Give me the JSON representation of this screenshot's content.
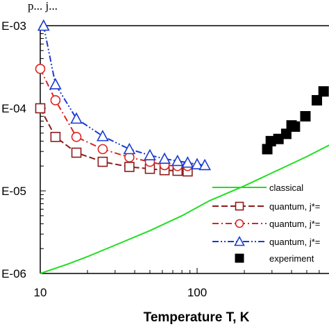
{
  "page_top_text": "p... j...",
  "chart_data": {
    "type": "line",
    "xlabel": "Temperature T, K",
    "ylabel": "",
    "xscale": "log",
    "yscale": "log",
    "xlim": [
      10,
      1000
    ],
    "ylim": [
      1e-06,
      0.001
    ],
    "x_tick_labels": [
      {
        "value": 10,
        "label": "10"
      },
      {
        "value": 100,
        "label": "100"
      }
    ],
    "y_tick_labels": [
      {
        "value": 0.001,
        "label": "E-03"
      },
      {
        "value": 0.0001,
        "label": "E-04"
      },
      {
        "value": 1e-05,
        "label": "E-05"
      },
      {
        "value": 1e-06,
        "label": "E-06"
      }
    ],
    "grid": false,
    "legend_placement": "bottom-right",
    "series": [
      {
        "name": "classical",
        "color": "#22dd22",
        "marker": "none",
        "dash": "solid",
        "x": [
          10,
          15,
          20,
          30,
          50,
          80,
          120,
          200,
          300,
          500,
          700,
          1000
        ],
        "y": [
          1e-06,
          1.3e-06,
          1.6e-06,
          2.2e-06,
          3.3e-06,
          5e-06,
          7.6e-06,
          1.15e-05,
          1.65e-05,
          2.6e-05,
          3.6e-05,
          5e-05
        ]
      },
      {
        "name": "quantum, j*=",
        "color": "#8b1a1a",
        "marker": "square",
        "dash": "longdash",
        "x": [
          10,
          12.5,
          17,
          25,
          37,
          50,
          62,
          75,
          87
        ],
        "y": [
          0.0001,
          4.5e-05,
          2.9e-05,
          2.25e-05,
          1.95e-05,
          1.85e-05,
          1.78e-05,
          1.75e-05,
          1.72e-05
        ]
      },
      {
        "name": "quantum, j*=",
        "color": "#dd2222",
        "marker": "circle",
        "dash": "dashdot",
        "x": [
          10,
          12.5,
          17,
          25,
          37,
          50,
          62,
          75,
          87
        ],
        "y": [
          0.0003,
          0.000125,
          4.5e-05,
          3.2e-05,
          2.55e-05,
          2.25e-05,
          2.05e-05,
          2e-05,
          2e-05
        ]
      },
      {
        "name": "quantum, j*=",
        "color": "#1a3ad0",
        "marker": "triangle",
        "dash": "dashdotdot",
        "x": [
          10.5,
          12.5,
          17,
          25,
          37,
          50,
          62,
          75,
          87,
          100,
          112
        ],
        "y": [
          0.001,
          0.000195,
          7.5e-05,
          4.6e-05,
          3.2e-05,
          2.7e-05,
          2.45e-05,
          2.3e-05,
          2.2e-05,
          2.1e-05,
          2.05e-05
        ]
      },
      {
        "name": "experiment",
        "color": "#000000",
        "marker": "filled-square",
        "dash": "none",
        "x": [
          280,
          295,
          330,
          370,
          400,
          420,
          490,
          580,
          640
        ],
        "y": [
          3.2e-05,
          4e-05,
          4.25e-05,
          4.9e-05,
          6.2e-05,
          6e-05,
          8e-05,
          0.000125,
          0.00016
        ]
      }
    ]
  }
}
